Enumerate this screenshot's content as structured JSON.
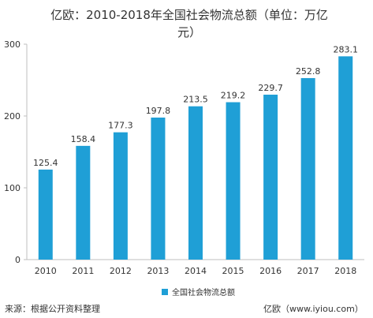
{
  "chart_data": {
    "type": "bar",
    "title": "亿欧：2010-2018年全国社会物流总额（单位：万亿元）",
    "categories": [
      "2010",
      "2011",
      "2012",
      "2013",
      "2014",
      "2015",
      "2016",
      "2017",
      "2018"
    ],
    "series": [
      {
        "name": "全国社会物流总额",
        "values": [
          125.4,
          158.4,
          177.3,
          197.8,
          213.5,
          219.2,
          229.7,
          252.8,
          283.1
        ],
        "labels": [
          "125.4",
          "158.4",
          "177.3",
          "197.8",
          "213.5",
          "219.2",
          "229.7",
          "252.8",
          "283.1"
        ],
        "color": "#1f9fd6"
      }
    ],
    "ylim": [
      0,
      300
    ],
    "yticks": [
      0,
      100,
      200,
      300
    ],
    "grid": false,
    "legend_position": "bottom"
  },
  "footer": {
    "source": "来源：根据公开资料整理",
    "watermark": "亿欧（www.iyiou.com）"
  },
  "colors": {
    "bar": "#1f9fd6",
    "axis": "#bfbfbf",
    "text": "#333333"
  }
}
